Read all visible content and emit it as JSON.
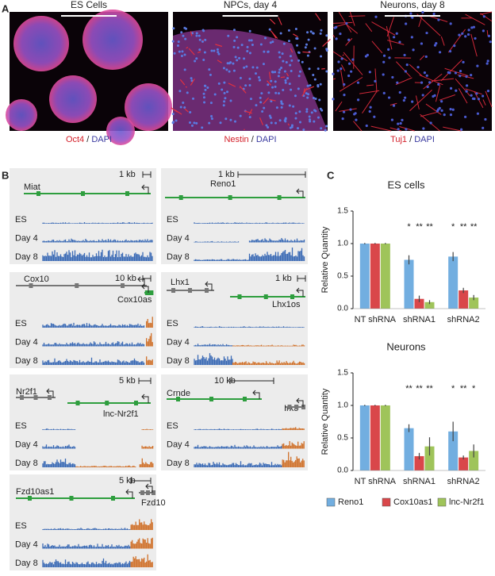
{
  "panel_a": {
    "label": "A",
    "images": [
      {
        "title": "ES Cells",
        "stain": "Oct4",
        "separator": "/",
        "counterstain": "DAPI"
      },
      {
        "title": "NPCs, day 4",
        "stain": "Nestin",
        "separator": "/",
        "counterstain": "DAPI"
      },
      {
        "title": "Neurons, day 8",
        "stain": "Tuj1",
        "separator": "/",
        "counterstain": "DAPI"
      }
    ]
  },
  "panel_b": {
    "label": "B",
    "boxes": [
      {
        "scale": "1 kb",
        "genes": [
          {
            "name": "Miat",
            "color": "#2e9e3e"
          }
        ],
        "tracks": [
          "ES",
          "Day 4",
          "Day 8"
        ]
      },
      {
        "scale": "1 kb",
        "genes": [
          {
            "name": "Reno1",
            "color": "#2e9e3e"
          }
        ],
        "tracks": [
          "ES",
          "Day 4",
          "Day 8"
        ]
      },
      {
        "scale": "10 kb",
        "genes": [
          {
            "name": "Cox10",
            "color": "#777777"
          },
          {
            "name": "Cox10as",
            "color": "#2e9e3e"
          }
        ],
        "tracks": [
          "ES",
          "Day 4",
          "Day 8"
        ]
      },
      {
        "scale": "1 kb",
        "genes": [
          {
            "name": "Lhx1",
            "color": "#777777"
          },
          {
            "name": "Lhx1os",
            "color": "#2e9e3e"
          }
        ],
        "tracks": [
          "ES",
          "Day 4",
          "Day 8"
        ]
      },
      {
        "scale": "5 kb",
        "genes": [
          {
            "name": "Nr2f1",
            "color": "#777777"
          },
          {
            "name": "lnc-Nr2f1",
            "color": "#2e9e3e"
          }
        ],
        "tracks": [
          "ES",
          "Day 4",
          "Day 8"
        ]
      },
      {
        "scale": "10 kb",
        "genes": [
          {
            "name": "Crnde",
            "color": "#2e9e3e"
          },
          {
            "name": "Irx5",
            "color": "#777777"
          }
        ],
        "tracks": [
          "ES",
          "Day 4",
          "Day 8"
        ]
      },
      {
        "scale": "5 kb",
        "genes": [
          {
            "name": "Fzd10as1",
            "color": "#2e9e3e"
          },
          {
            "name": "Fzd10",
            "color": "#777777"
          }
        ],
        "tracks": [
          "ES",
          "Day 4",
          "Day 8"
        ]
      }
    ]
  },
  "panel_c": {
    "label": "C"
  },
  "chart_data": [
    {
      "type": "bar",
      "title": "ES cells",
      "ylabel": "Relative Quantity",
      "categories": [
        "NT shRNA",
        "shRNA1",
        "shRNA2"
      ],
      "series": [
        {
          "color": "#72aee0",
          "values": [
            1.0,
            0.75,
            0.8
          ],
          "errors": [
            0.01,
            0.07,
            0.07
          ]
        },
        {
          "color": "#d9474a",
          "values": [
            1.0,
            0.15,
            0.28
          ],
          "errors": [
            0.01,
            0.05,
            0.04
          ]
        },
        {
          "color": "#9fc45a",
          "values": [
            1.0,
            0.1,
            0.17
          ],
          "errors": [
            0.01,
            0.03,
            0.04
          ]
        }
      ],
      "significance": [
        [],
        [
          "*",
          "**",
          "**"
        ],
        [
          "*",
          "**",
          "**"
        ]
      ],
      "ylim": [
        0,
        1.5
      ],
      "yticks": [
        {
          "value": 0,
          "label": "0.0"
        },
        {
          "value": 0.5,
          "label": "0.5"
        },
        {
          "value": 1,
          "label": "1.0"
        },
        {
          "value": 1.5,
          "label": "1.5"
        }
      ]
    },
    {
      "type": "bar",
      "title": "Neurons",
      "ylabel": "Relative Quantity",
      "categories": [
        "NT shRNA",
        "shRNA1",
        "shRNA2"
      ],
      "series": [
        {
          "name": "Reno1",
          "color": "#72aee0",
          "values": [
            1.0,
            0.65,
            0.6
          ],
          "errors": [
            0.01,
            0.06,
            0.15
          ]
        },
        {
          "name": "Cox10as1",
          "color": "#d9474a",
          "values": [
            1.0,
            0.22,
            0.2
          ],
          "errors": [
            0.01,
            0.05,
            0.03
          ]
        },
        {
          "name": "lnc-Nr2f1",
          "color": "#9fc45a",
          "values": [
            1.0,
            0.37,
            0.3
          ],
          "errors": [
            0.01,
            0.14,
            0.1
          ]
        }
      ],
      "significance": [
        [],
        [
          "**",
          "**",
          "**"
        ],
        [
          "*",
          "**",
          "*"
        ]
      ],
      "legend": "bottom",
      "ylim": [
        0,
        1.5
      ],
      "yticks": [
        {
          "value": 0,
          "label": "0.0"
        },
        {
          "value": 0.5,
          "label": "0.5"
        },
        {
          "value": 1,
          "label": "1.0"
        },
        {
          "value": 1.5,
          "label": "1.5"
        }
      ]
    }
  ]
}
